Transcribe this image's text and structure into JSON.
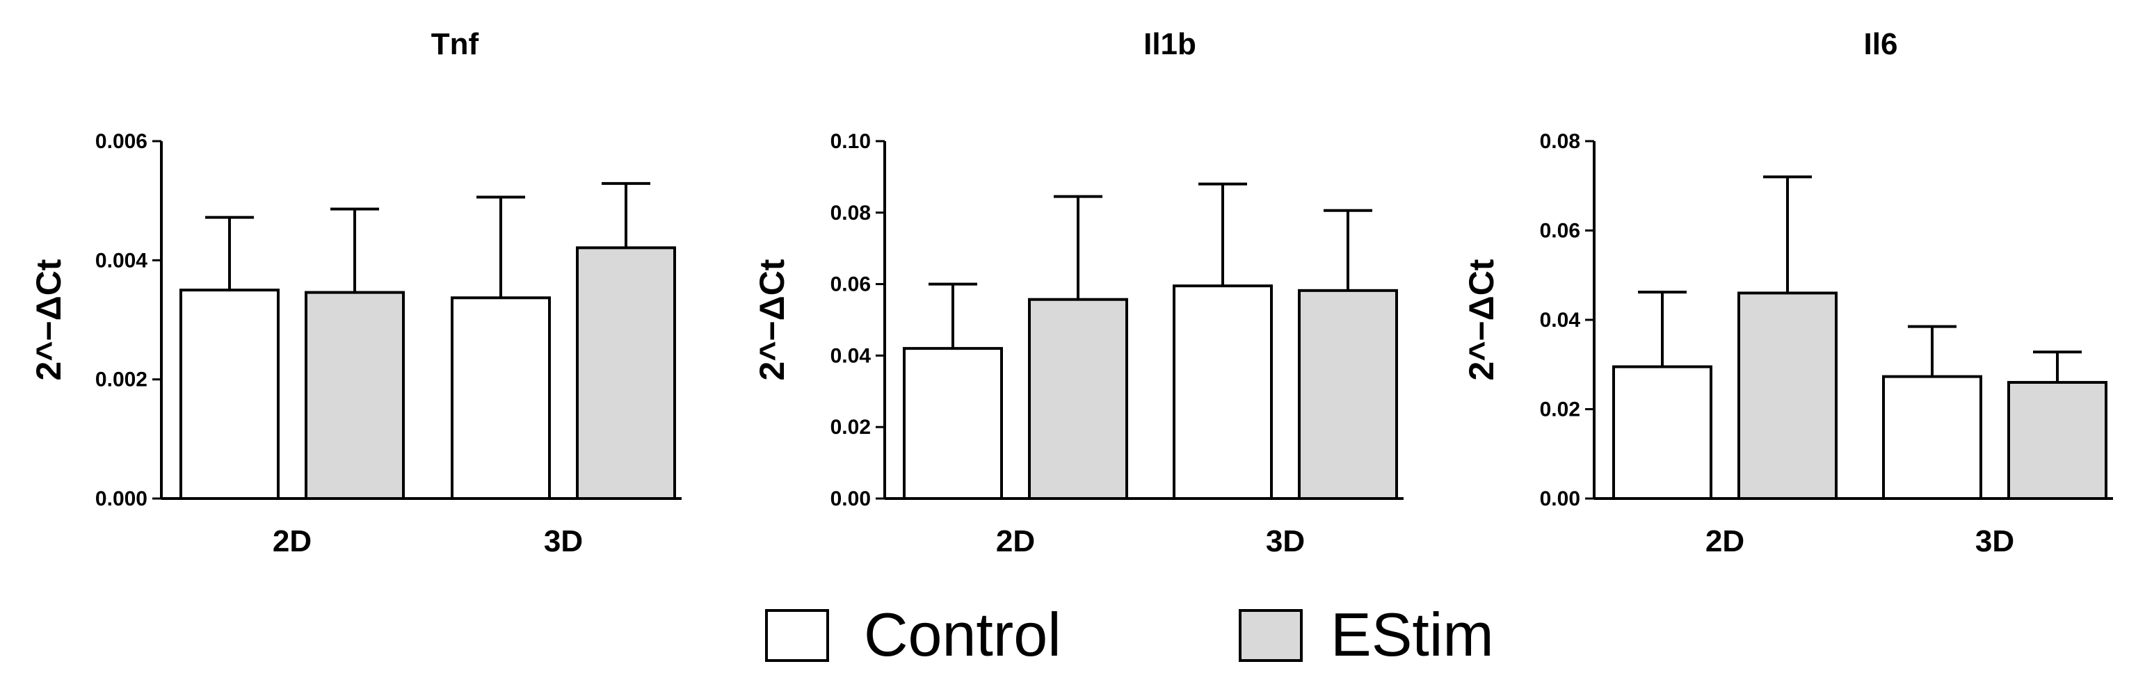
{
  "chart_data": [
    {
      "type": "bar",
      "title": "Tnf",
      "ylabel": "2^−ΔCt",
      "xlabel": "",
      "categories": [
        "2D",
        "3D"
      ],
      "ylim": [
        0,
        0.006
      ],
      "yticks": [
        "0.000",
        "0.002",
        "0.004",
        "0.006"
      ],
      "series": [
        {
          "name": "Control",
          "values": [
            0.0035,
            0.00337
          ],
          "errors": [
            0.00122,
            0.00169
          ]
        },
        {
          "name": "EStim",
          "values": [
            0.00346,
            0.00421
          ],
          "errors": [
            0.0014,
            0.00108
          ]
        }
      ]
    },
    {
      "type": "bar",
      "title": "Il1b",
      "ylabel": "2^−ΔCt",
      "xlabel": "",
      "categories": [
        "2D",
        "3D"
      ],
      "ylim": [
        0,
        0.1
      ],
      "yticks": [
        "0.00",
        "0.02",
        "0.04",
        "0.06",
        "0.08",
        "0.10"
      ],
      "series": [
        {
          "name": "Control",
          "values": [
            0.042,
            0.0595
          ],
          "errors": [
            0.018,
            0.0285
          ]
        },
        {
          "name": "EStim",
          "values": [
            0.0557,
            0.0582
          ],
          "errors": [
            0.0288,
            0.0224
          ]
        }
      ]
    },
    {
      "type": "bar",
      "title": "Il6",
      "ylabel": "2^−ΔCt",
      "xlabel": "",
      "categories": [
        "2D",
        "3D"
      ],
      "ylim": [
        0,
        0.08
      ],
      "yticks": [
        "0.00",
        "0.02",
        "0.04",
        "0.06",
        "0.08"
      ],
      "series": [
        {
          "name": "Control",
          "values": [
            0.0295,
            0.0273
          ],
          "errors": [
            0.0167,
            0.0112
          ]
        },
        {
          "name": "EStim",
          "values": [
            0.046,
            0.026
          ],
          "errors": [
            0.026,
            0.0068
          ]
        }
      ]
    }
  ],
  "legend": {
    "items": [
      {
        "label": "Control",
        "color": "#ffffff"
      },
      {
        "label": "EStim",
        "color": "#d9d9d9"
      }
    ]
  },
  "colors": {
    "control": "#ffffff",
    "estim": "#d9d9d9",
    "stroke": "#000000"
  }
}
